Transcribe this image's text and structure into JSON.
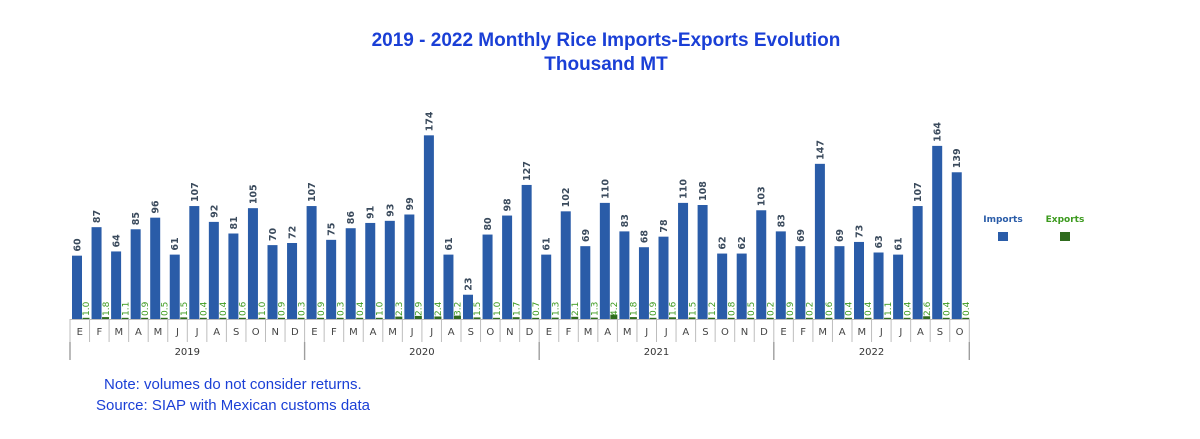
{
  "colors": {
    "imports": "#2a5ca8",
    "exports": "#2f6b1e",
    "title": "#1a3fd6"
  },
  "chart_data": {
    "type": "bar",
    "title": "2019 - 2022 Monthly Rice Imports-Exports Evolution",
    "subtitle": "Thousand MT",
    "xlabel": "",
    "ylabel": "",
    "ylim": [
      0,
      180
    ],
    "grid": false,
    "legend": "right",
    "years": [
      {
        "label": "2019",
        "months": 12
      },
      {
        "label": "2020",
        "months": 12
      },
      {
        "label": "2021",
        "months": 12
      },
      {
        "label": "2022",
        "months": 10
      }
    ],
    "categories": [
      "E",
      "F",
      "M",
      "A",
      "M",
      "J",
      "J",
      "A",
      "S",
      "O",
      "N",
      "D",
      "E",
      "F",
      "M",
      "A",
      "M",
      "J",
      "J",
      "A",
      "S",
      "O",
      "N",
      "D",
      "E",
      "F",
      "M",
      "A",
      "M",
      "J",
      "J",
      "A",
      "S",
      "O",
      "N",
      "D",
      "E",
      "F",
      "M",
      "A",
      "M",
      "J",
      "J",
      "A",
      "S",
      "O"
    ],
    "series": [
      {
        "name": "Imports",
        "values": [
          60,
          87,
          64,
          85,
          96,
          61,
          107,
          92,
          81,
          105,
          70,
          72,
          107,
          75,
          86,
          91,
          93,
          99,
          174,
          61,
          23,
          80,
          98,
          127,
          61,
          102,
          69,
          110,
          83,
          68,
          78,
          110,
          108,
          62,
          62,
          103,
          83,
          69,
          147,
          69,
          73,
          63,
          61,
          107,
          164,
          139
        ],
        "labels": [
          "60",
          "87",
          "64",
          "85",
          "96",
          "61",
          "107",
          "92",
          "81",
          "105",
          "70",
          "72",
          "107",
          "75",
          "86",
          "91",
          "93",
          "99",
          "174",
          "61",
          "23",
          "80",
          "98",
          "127",
          "61",
          "102",
          "69",
          "110",
          "83",
          "68",
          "78",
          "110",
          "108",
          "62",
          "62",
          "103",
          "83",
          "69",
          "147",
          "69",
          "73",
          "63",
          "61",
          "107",
          "164",
          "139"
        ]
      },
      {
        "name": "Exports",
        "values": [
          1.0,
          1.8,
          1.1,
          0.9,
          0.5,
          1.5,
          0.4,
          0.4,
          0.6,
          1.0,
          0.9,
          0.3,
          0.9,
          0.3,
          0.4,
          1.0,
          2.3,
          2.9,
          2.4,
          3.2,
          1.5,
          1.0,
          1.7,
          0.7,
          1.3,
          2.1,
          1.3,
          4.2,
          1.8,
          0.9,
          1.6,
          1.5,
          1.2,
          0.8,
          0.5,
          0.2,
          0.9,
          0.2,
          0.6,
          0.4,
          0.4,
          1.1,
          0.4,
          2.6,
          0.4,
          0.4
        ],
        "labels": [
          "1.0",
          "1.8",
          "1.1",
          "0.9",
          "0.5",
          "1.5",
          "0.4",
          "0.4",
          "0.6",
          "1.0",
          "0.9",
          "0.3",
          "0.9",
          "0.3",
          "0.4",
          "1.0",
          "2.3",
          "2.9",
          "2.4",
          "3.2",
          "1.5",
          "1.0",
          "1.7",
          "0.7",
          "1.3",
          "2.1",
          "1.3",
          "4.2",
          "1.8",
          "0.9",
          "1.6",
          "1.5",
          "1.2",
          "0.8",
          "0.5",
          "0.2",
          "0.9",
          "0.2",
          "0.6",
          "0.4",
          "0.4",
          "1.1",
          "0.4",
          "2.6",
          "0.4",
          "0.4"
        ]
      }
    ],
    "legend_labels": {
      "imports": "Imports",
      "exports": "Exports"
    }
  },
  "notes": {
    "line1": "Note: volumes do not consider returns.",
    "line2": "Source: SIAP with Mexican customs data"
  }
}
